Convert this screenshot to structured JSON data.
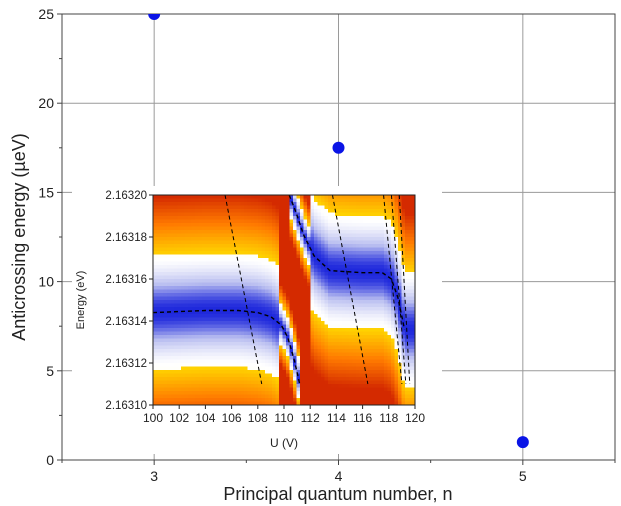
{
  "chart_data": [
    {
      "type": "scatter",
      "xlabel": "Principal quantum number, n",
      "ylabel": "Anticrossing energy (µeV)",
      "xlim": [
        2.5,
        5.5
      ],
      "ylim": [
        0,
        25
      ],
      "x_ticks": [
        "3",
        "4",
        "5"
      ],
      "y_ticks": [
        "0",
        "5",
        "10",
        "15",
        "20",
        "25"
      ],
      "grid": true,
      "series": [
        {
          "marker_color": "#0a14e6",
          "x": [
            3,
            4,
            5
          ],
          "y": [
            25.0,
            17.5,
            1.0
          ]
        }
      ]
    },
    {
      "type": "heatmap",
      "xlabel": "U (V)",
      "ylabel": "Energy (eV)",
      "xlim": [
        100,
        120
      ],
      "ylim": [
        2.1631,
        2.1632
      ],
      "x_ticks": [
        "100",
        "102",
        "104",
        "106",
        "108",
        "110",
        "112",
        "114",
        "116",
        "118",
        "120"
      ],
      "y_ticks": [
        "2.16310",
        "2.16312",
        "2.16314",
        "2.16316",
        "2.16318",
        "2.16320"
      ],
      "colormap": [
        "#d42a00",
        "#ff7a00",
        "#ffd400",
        "#fffcc8",
        "#ffffff",
        "#b8bdf0",
        "#1e28dc"
      ],
      "guide_line_style": "dashed",
      "guide_line_color": "#000000",
      "anticrossing_curves": [
        {
          "u": [
            100,
            104,
            106.5,
            108,
            109,
            109.8,
            110.3,
            110.8,
            111.2
          ],
          "energy": [
            2.163144,
            2.163145,
            2.163145,
            2.163144,
            2.163142,
            2.163138,
            2.163132,
            2.163121,
            2.16311
          ]
        },
        {
          "u": [
            110.4,
            110.9,
            111.5,
            112.3,
            113.5,
            116,
            117.5,
            118.2,
            118.7,
            119.2
          ],
          "energy": [
            2.1632,
            2.163192,
            2.163181,
            2.163171,
            2.163164,
            2.163163,
            2.163163,
            2.16316,
            2.163151,
            2.163136
          ]
        }
      ],
      "diabatic_lines": [
        {
          "u": [
            105.5,
            108.3
          ],
          "energy": [
            2.1632,
            2.16311
          ]
        },
        {
          "u": [
            113.7,
            116.4
          ],
          "energy": [
            2.1632,
            2.16311
          ]
        },
        {
          "u": [
            117.6,
            119.0
          ],
          "energy": [
            2.1632,
            2.16311
          ]
        },
        {
          "u": [
            118.2,
            119.3
          ],
          "energy": [
            2.1632,
            2.16311
          ]
        },
        {
          "u": [
            118.8,
            119.6
          ],
          "energy": [
            2.1632,
            2.16311
          ]
        }
      ]
    }
  ]
}
